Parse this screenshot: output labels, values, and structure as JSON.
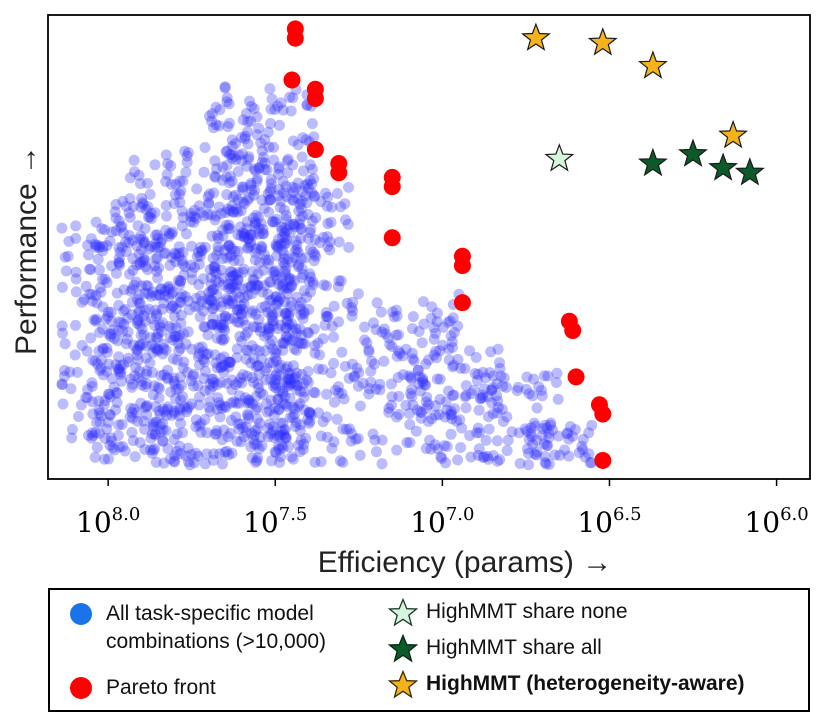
{
  "chart_data": {
    "type": "scatter",
    "title": "",
    "xlabel": "Efficiency (params) →",
    "ylabel": "Performance →",
    "x_scale": "log10 params (reversed)",
    "xlim": [
      8.18,
      5.9
    ],
    "ylim": [
      0,
      1
    ],
    "x_ticks": [
      {
        "value": 8.0,
        "base": "10",
        "exp": "8.0"
      },
      {
        "value": 7.5,
        "base": "10",
        "exp": "7.5"
      },
      {
        "value": 7.0,
        "base": "10",
        "exp": "7.0"
      },
      {
        "value": 6.5,
        "base": "10",
        "exp": "6.5"
      },
      {
        "value": 6.0,
        "base": "10",
        "exp": "6.0"
      }
    ],
    "series": [
      {
        "name": "All task-specific model combinations (>10,000)",
        "color": "#2a2aff",
        "note": "dense cloud, >10,000 points",
        "regions": [
          {
            "x": [
              8.14,
              7.78
            ],
            "y": [
              0.03,
              0.55
            ]
          },
          {
            "x": [
              8.05,
              7.38
            ],
            "y": [
              0.03,
              0.62
            ]
          },
          {
            "x": [
              7.95,
              7.45
            ],
            "y": [
              0.03,
              0.72
            ]
          },
          {
            "x": [
              7.7,
              7.38
            ],
            "y": [
              0.03,
              0.86
            ]
          },
          {
            "x": [
              7.5,
              7.28
            ],
            "y": [
              0.03,
              0.66
            ]
          },
          {
            "x": [
              7.28,
              6.95
            ],
            "y": [
              0.03,
              0.4
            ]
          },
          {
            "x": [
              7.1,
              6.8
            ],
            "y": [
              0.03,
              0.28
            ]
          },
          {
            "x": [
              6.9,
              6.65
            ],
            "y": [
              0.03,
              0.24
            ]
          },
          {
            "x": [
              6.75,
              6.55
            ],
            "y": [
              0.03,
              0.12
            ]
          }
        ]
      },
      {
        "name": "Pareto front",
        "color": "#ff0000",
        "points": [
          [
            7.44,
            0.97
          ],
          [
            7.44,
            0.95
          ],
          [
            7.45,
            0.86
          ],
          [
            7.38,
            0.84
          ],
          [
            7.38,
            0.82
          ],
          [
            7.38,
            0.71
          ],
          [
            7.31,
            0.68
          ],
          [
            7.31,
            0.66
          ],
          [
            7.15,
            0.65
          ],
          [
            7.15,
            0.63
          ],
          [
            7.15,
            0.52
          ],
          [
            6.94,
            0.48
          ],
          [
            6.94,
            0.46
          ],
          [
            6.94,
            0.38
          ],
          [
            6.62,
            0.34
          ],
          [
            6.61,
            0.32
          ],
          [
            6.6,
            0.22
          ],
          [
            6.53,
            0.16
          ],
          [
            6.52,
            0.14
          ],
          [
            6.52,
            0.04
          ]
        ]
      },
      {
        "name": "HighMMT share none",
        "color": "#d6f5e1",
        "points": [
          [
            6.65,
            0.69
          ]
        ]
      },
      {
        "name": "HighMMT share all",
        "color": "#0b5a2a",
        "points": [
          [
            6.37,
            0.68
          ],
          [
            6.25,
            0.7
          ],
          [
            6.16,
            0.67
          ],
          [
            6.08,
            0.66
          ]
        ]
      },
      {
        "name": "HighMMT (heterogeneity-aware)",
        "color": "#f5b21b",
        "points": [
          [
            6.72,
            0.95
          ],
          [
            6.52,
            0.94
          ],
          [
            6.37,
            0.89
          ],
          [
            6.13,
            0.74
          ]
        ]
      }
    ],
    "legend": [
      {
        "label_line1": "All task-specific model",
        "label_line2": "combinations (>10,000)",
        "color": "#1a73e8",
        "marker": "circle"
      },
      {
        "label_line1": "Pareto front",
        "color": "#ff0000",
        "marker": "circle"
      },
      {
        "label_line1": "HighMMT share none",
        "color": "#d6f5e1",
        "marker": "star"
      },
      {
        "label_line1": "HighMMT share all",
        "color": "#0b5a2a",
        "marker": "star"
      },
      {
        "label_line1": "HighMMT (heterogeneity-aware)",
        "color": "#f5b21b",
        "marker": "star"
      }
    ]
  }
}
